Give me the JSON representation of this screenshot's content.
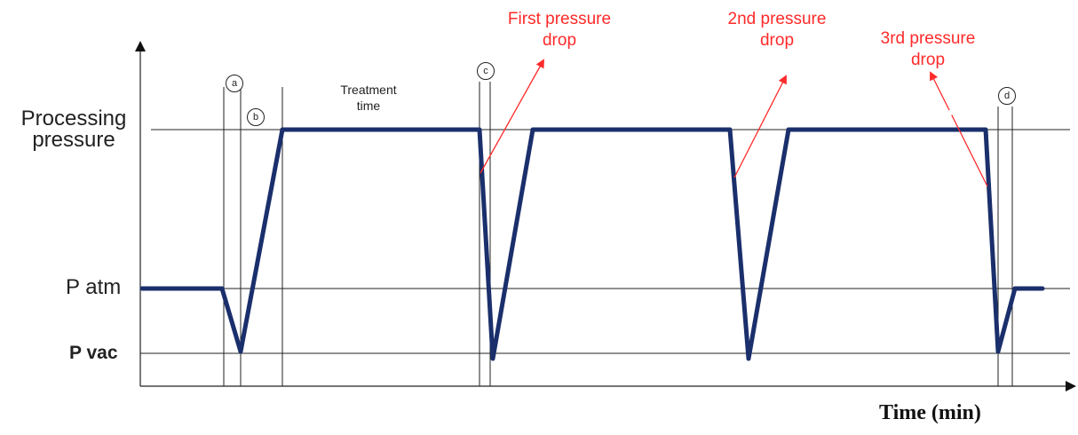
{
  "y_levels": {
    "processing_pressure": "Processing\npressure",
    "atmospheric": "P atm",
    "vacuum": "P vac"
  },
  "x_axis_label": "Time (min)",
  "phase_markers": [
    "a",
    "b",
    "c",
    "d"
  ],
  "treatment_label": "Treatment\ntime",
  "annotations": [
    "First pressure\ndrop",
    "2nd pressure\ndrop",
    "3rd pressure\ndrop"
  ],
  "colors": {
    "curve": "#1a2f6b",
    "annotation": "#ff2a2a",
    "lines": "#222222"
  }
}
